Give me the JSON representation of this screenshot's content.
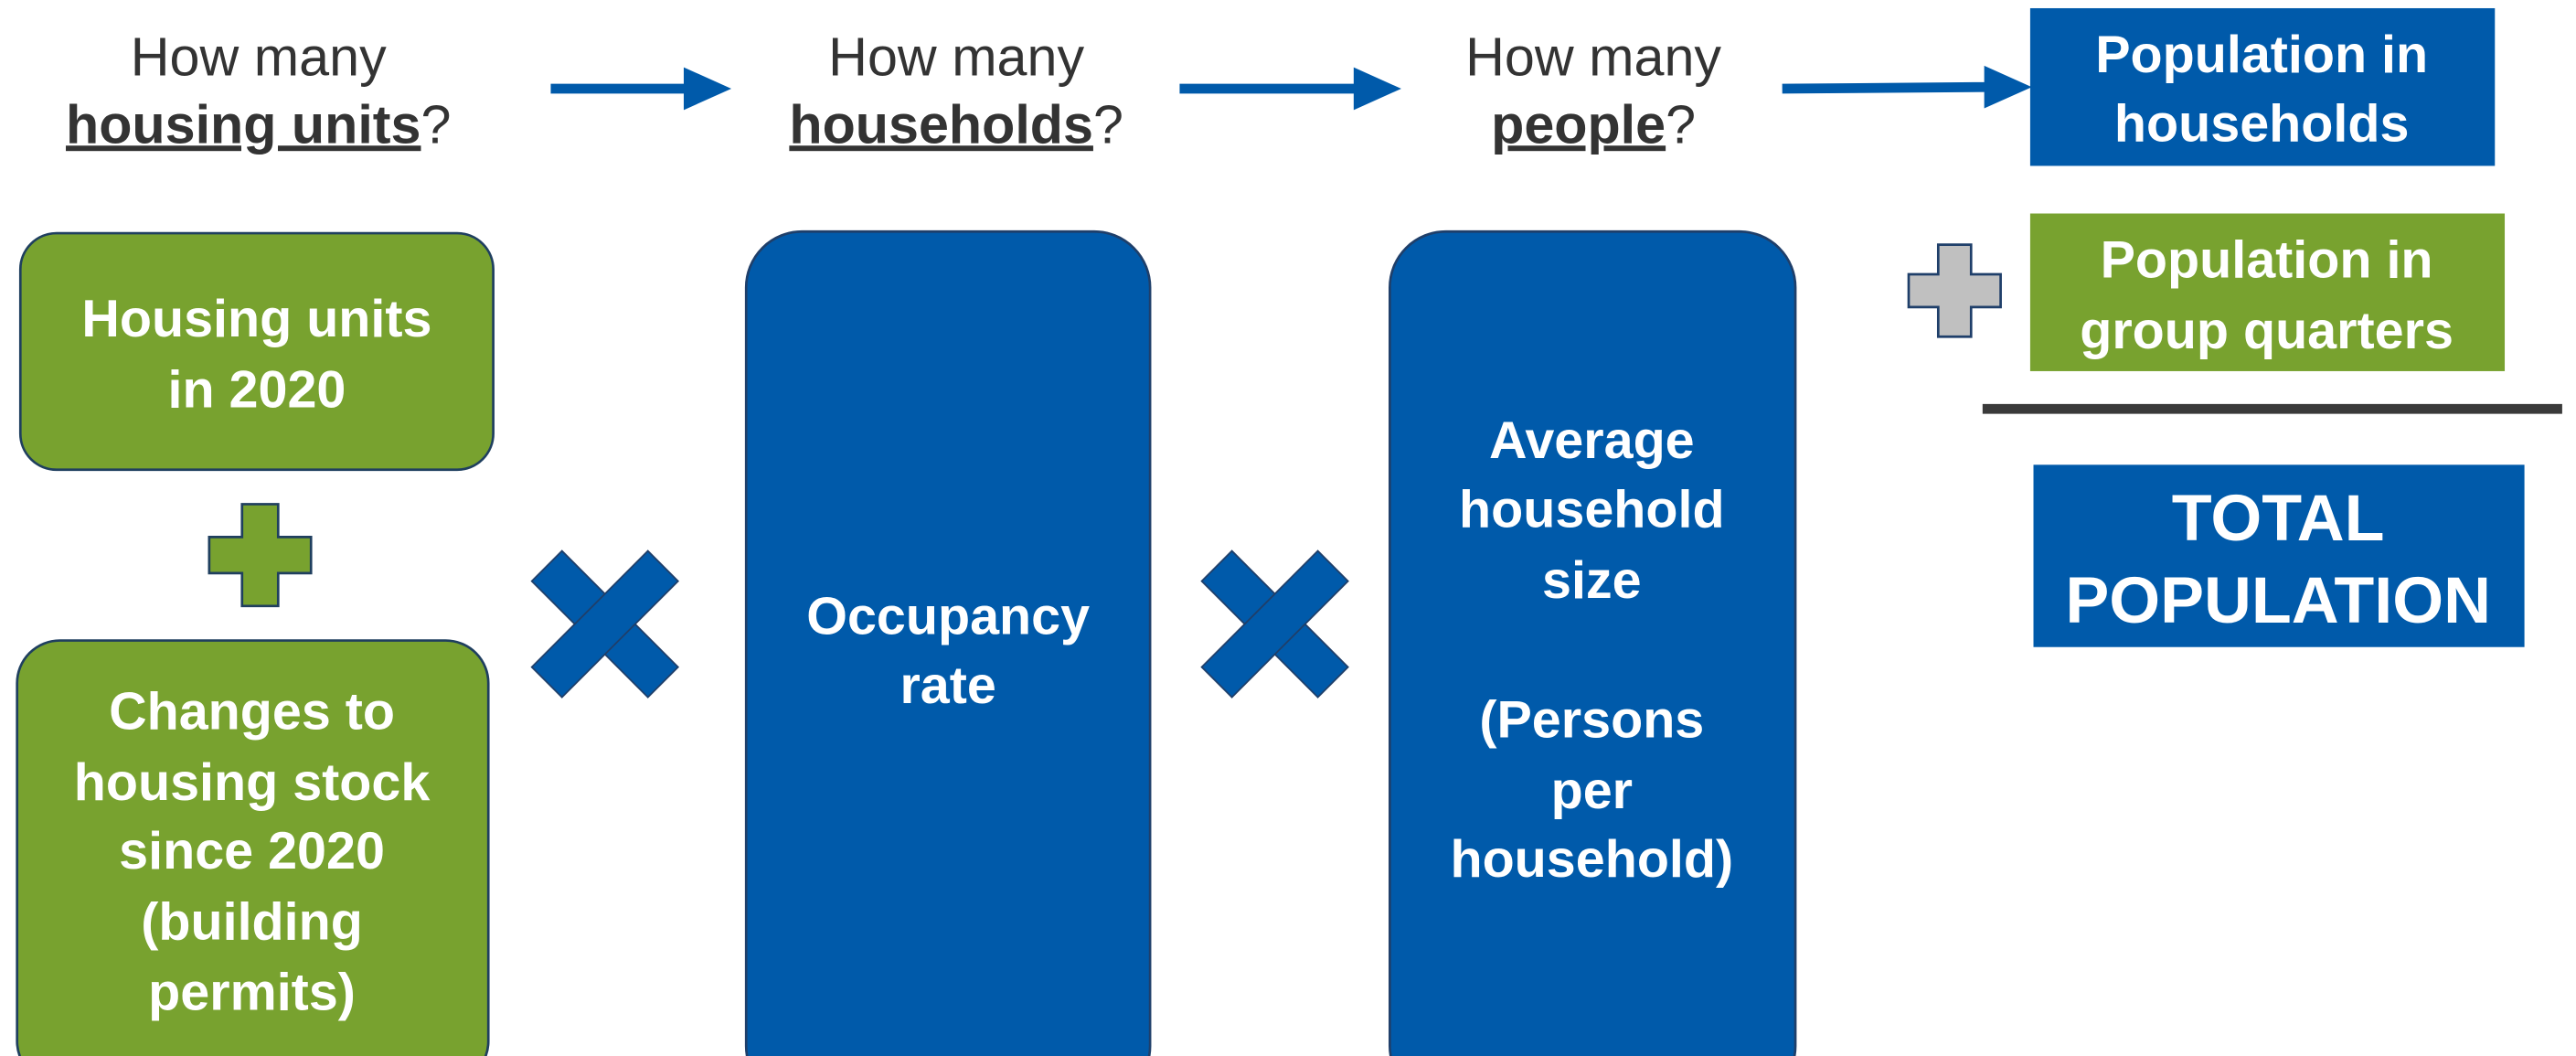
{
  "questions": [
    {
      "prefix": "How many",
      "emphasis": "housing units",
      "suffix": "?"
    },
    {
      "prefix": "How many",
      "emphasis": "households",
      "suffix": "?"
    },
    {
      "prefix": "How many",
      "emphasis": "people",
      "suffix": "?"
    }
  ],
  "boxes": {
    "housing_units_2020": [
      "Housing units",
      "in 2020"
    ],
    "changes": [
      "Changes to",
      "housing stock",
      "since 2020",
      "(building",
      "permits)"
    ],
    "occupancy": [
      "Occupancy",
      "rate"
    ],
    "household_size": [
      "Average",
      "household",
      "size",
      "(Persons",
      "per",
      "household)"
    ],
    "pop_households": [
      "Population in",
      "households"
    ],
    "pop_group_quarters": [
      "Population in",
      "group quarters"
    ],
    "total": [
      "TOTAL",
      "POPULATION"
    ]
  }
}
